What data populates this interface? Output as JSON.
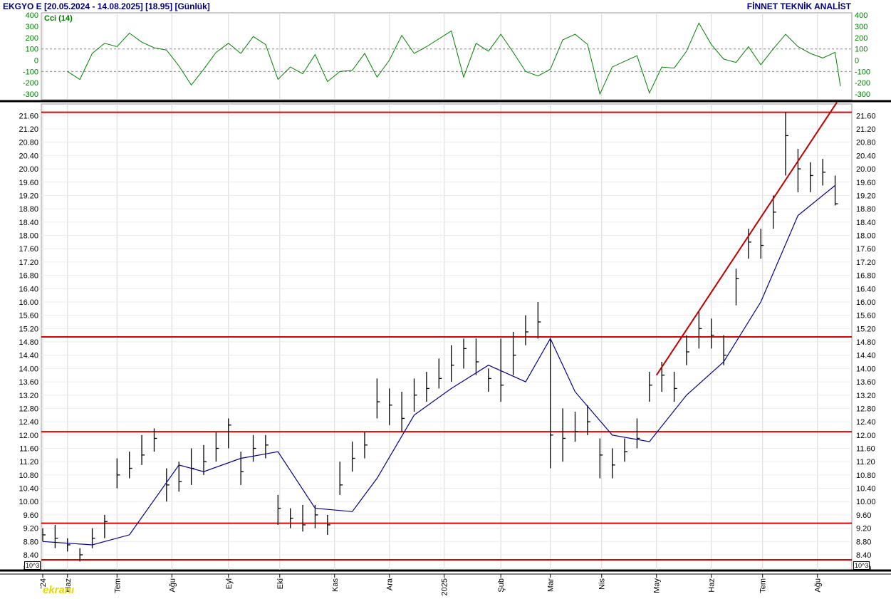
{
  "header": {
    "title": "EKGYO E  [20.05.2024 - 14.08.2025]  [18.95]  [Günlük]",
    "provider": "FİNNET TEKNİK ANALİST"
  },
  "indicator": {
    "label": "Cci (14)"
  },
  "scale_badge": "10^3",
  "watermark": "ekranı",
  "colors": {
    "price_bars": "#000000",
    "moving_average": "#00008b",
    "cci_line": "#008000",
    "support_resistance": "#e00000",
    "axis_text": "#000000",
    "header_text": "#000080"
  },
  "chart_data": [
    {
      "type": "line",
      "panel": "indicator",
      "title": "Cci (14)",
      "ylim": [
        -350,
        420
      ],
      "yticks": [
        400,
        300,
        200,
        100,
        0,
        -100,
        -200,
        -300
      ],
      "yticklabels": [
        "400",
        "300",
        "200",
        "100",
        "0",
        "-100",
        "-200",
        "-300"
      ],
      "reference_lines": [
        100,
        -100
      ],
      "series": [
        {
          "name": "Cci (14)",
          "x": [
            "2024-06-03",
            "2024-06-10",
            "2024-06-17",
            "2024-06-24",
            "2024-07-01",
            "2024-07-08",
            "2024-07-15",
            "2024-07-22",
            "2024-07-29",
            "2024-08-05",
            "2024-08-12",
            "2024-08-19",
            "2024-08-26",
            "2024-09-02",
            "2024-09-09",
            "2024-09-16",
            "2024-09-23",
            "2024-09-30",
            "2024-10-07",
            "2024-10-14",
            "2024-10-21",
            "2024-10-28",
            "2024-11-04",
            "2024-11-11",
            "2024-11-18",
            "2024-11-25",
            "2024-12-02",
            "2024-12-09",
            "2024-12-16",
            "2024-12-23",
            "2025-01-06",
            "2025-01-13",
            "2025-01-20",
            "2025-01-27",
            "2025-02-03",
            "2025-02-10",
            "2025-02-17",
            "2025-02-24",
            "2025-03-03",
            "2025-03-10",
            "2025-03-17",
            "2025-03-24",
            "2025-03-31",
            "2025-04-07",
            "2025-04-14",
            "2025-04-21",
            "2025-04-28",
            "2025-05-05",
            "2025-05-12",
            "2025-05-19",
            "2025-05-26",
            "2025-06-02",
            "2025-06-09",
            "2025-06-16",
            "2025-06-23",
            "2025-06-30",
            "2025-07-07",
            "2025-07-14",
            "2025-07-21",
            "2025-07-28",
            "2025-08-04",
            "2025-08-11",
            "2025-08-14"
          ],
          "values": [
            -100,
            -170,
            60,
            150,
            120,
            240,
            160,
            110,
            90,
            -50,
            -220,
            -80,
            70,
            150,
            60,
            210,
            140,
            -170,
            -60,
            -120,
            50,
            -190,
            -100,
            -90,
            60,
            -150,
            0,
            220,
            60,
            120,
            260,
            -150,
            150,
            80,
            230,
            70,
            -100,
            -140,
            -80,
            180,
            230,
            140,
            -300,
            -60,
            -10,
            40,
            -290,
            -60,
            -70,
            80,
            330,
            140,
            10,
            -20,
            120,
            -40,
            100,
            230,
            120,
            60,
            20,
            70,
            -230
          ]
        }
      ]
    },
    {
      "type": "bar",
      "subtype": "ohlc",
      "panel": "price",
      "title": "EKGYO E",
      "ylim": [
        7.95,
        21.95
      ],
      "yticks": [
        21.6,
        21.2,
        20.8,
        20.4,
        20.0,
        19.6,
        19.2,
        18.8,
        18.4,
        18.0,
        17.6,
        17.2,
        16.8,
        16.4,
        16.0,
        15.6,
        15.2,
        14.8,
        14.4,
        14.0,
        13.6,
        13.2,
        12.8,
        12.4,
        12.0,
        11.6,
        11.2,
        10.8,
        10.4,
        10.0,
        9.6,
        9.2,
        8.8,
        8.4,
        8.0
      ],
      "yticklabels": [
        "21.60",
        "21.20",
        "20.80",
        "20.40",
        "20.00",
        "19.60",
        "19.20",
        "18.80",
        "18.40",
        "18.00",
        "17.60",
        "17.20",
        "16.80",
        "16.40",
        "16.00",
        "15.60",
        "15.20",
        "14.80",
        "14.40",
        "14.00",
        "13.60",
        "13.20",
        "12.80",
        "12.40",
        "12.00",
        "11.60",
        "11.20",
        "10.80",
        "10.40",
        "10.00",
        "9.60",
        "9.20",
        "8.80",
        "8.40",
        "8.00"
      ],
      "xticks": [
        "2024-05-20",
        "2024-06-03",
        "2024-07-01",
        "2024-08-01",
        "2024-09-02",
        "2024-10-01",
        "2024-11-01",
        "2024-12-02",
        "2025-01-02",
        "2025-02-03",
        "2025-03-03",
        "2025-04-01",
        "2025-05-02",
        "2025-06-02",
        "2025-07-01",
        "2025-08-01"
      ],
      "xticklabels": [
        "'24",
        "Haz",
        "Tem",
        "Ağu",
        "Eyl",
        "Eki",
        "Kas",
        "Ara",
        "2025",
        "Şub",
        "Mar",
        "Nis",
        "May",
        "Haz",
        "Tem",
        "Ağu"
      ],
      "date_range": [
        "2024-05-20",
        "2025-08-14"
      ],
      "last_close": 18.95,
      "grid": true,
      "horizontal_levels": [
        21.7,
        14.95,
        12.1,
        9.35,
        8.25
      ],
      "trendline": {
        "from": {
          "x": "2025-05-02",
          "y": 13.8
        },
        "to": {
          "x": "2025-08-12",
          "y": 22.0
        }
      },
      "series": [
        {
          "name": "OHLC",
          "x": [
            "2024-05-20",
            "2024-05-27",
            "2024-06-03",
            "2024-06-10",
            "2024-06-17",
            "2024-06-24",
            "2024-07-01",
            "2024-07-08",
            "2024-07-15",
            "2024-07-22",
            "2024-07-29",
            "2024-08-05",
            "2024-08-12",
            "2024-08-19",
            "2024-08-26",
            "2024-09-02",
            "2024-09-09",
            "2024-09-16",
            "2024-09-23",
            "2024-09-30",
            "2024-10-07",
            "2024-10-14",
            "2024-10-21",
            "2024-10-28",
            "2024-11-04",
            "2024-11-11",
            "2024-11-18",
            "2024-11-25",
            "2024-12-02",
            "2024-12-09",
            "2024-12-16",
            "2024-12-23",
            "2024-12-30",
            "2025-01-06",
            "2025-01-13",
            "2025-01-20",
            "2025-01-27",
            "2025-02-03",
            "2025-02-10",
            "2025-02-17",
            "2025-02-24",
            "2025-03-03",
            "2025-03-10",
            "2025-03-17",
            "2025-03-24",
            "2025-03-31",
            "2025-04-07",
            "2025-04-14",
            "2025-04-21",
            "2025-04-28",
            "2025-05-05",
            "2025-05-12",
            "2025-05-19",
            "2025-05-26",
            "2025-06-02",
            "2025-06-09",
            "2025-06-16",
            "2025-06-23",
            "2025-06-30",
            "2025-07-07",
            "2025-07-14",
            "2025-07-21",
            "2025-07-28",
            "2025-08-04",
            "2025-08-11"
          ],
          "values": [
            9.0,
            8.9,
            8.7,
            8.4,
            8.9,
            9.4,
            10.8,
            11.0,
            11.4,
            11.9,
            10.5,
            10.6,
            11.0,
            11.2,
            11.6,
            12.3,
            10.9,
            11.6,
            11.7,
            9.8,
            9.5,
            9.3,
            9.6,
            9.3,
            10.5,
            11.3,
            11.7,
            13.0,
            12.9,
            12.5,
            13.2,
            13.4,
            13.7,
            14.1,
            14.6,
            14.2,
            13.7,
            13.5,
            14.4,
            15.1,
            15.4,
            12.0,
            11.9,
            12.1,
            12.4,
            11.4,
            11.1,
            11.5,
            11.9,
            13.5,
            13.8,
            13.4,
            14.5,
            15.2,
            15.0,
            14.4,
            16.7,
            17.8,
            17.7,
            18.7,
            21.0,
            20.0,
            19.8,
            19.9,
            18.95
          ],
          "high": [
            9.2,
            9.3,
            8.9,
            8.6,
            9.2,
            9.6,
            11.3,
            11.5,
            12.0,
            12.2,
            11.0,
            11.2,
            11.6,
            11.7,
            12.1,
            12.5,
            11.5,
            12.0,
            12.0,
            10.2,
            9.8,
            9.9,
            9.9,
            9.6,
            11.2,
            11.8,
            12.1,
            13.7,
            13.4,
            13.3,
            13.7,
            13.9,
            14.3,
            14.7,
            14.9,
            14.9,
            14.0,
            14.9,
            15.1,
            15.6,
            16.0,
            14.9,
            12.8,
            12.7,
            12.9,
            11.9,
            11.6,
            11.9,
            12.5,
            13.9,
            14.2,
            13.9,
            15.0,
            15.7,
            15.5,
            15.0,
            17.0,
            18.2,
            18.2,
            19.2,
            21.7,
            20.6,
            20.2,
            20.3,
            19.8
          ],
          "low": [
            8.8,
            8.6,
            8.5,
            8.2,
            8.6,
            8.9,
            10.4,
            10.7,
            11.1,
            11.5,
            10.0,
            10.3,
            10.5,
            10.8,
            11.2,
            11.6,
            10.5,
            11.2,
            11.3,
            9.3,
            9.2,
            9.1,
            9.2,
            9.0,
            10.2,
            10.9,
            11.3,
            12.5,
            12.3,
            12.1,
            12.7,
            13.0,
            13.4,
            13.6,
            14.0,
            13.8,
            13.3,
            13.0,
            13.8,
            14.7,
            14.9,
            11.0,
            11.2,
            11.8,
            12.0,
            10.7,
            10.7,
            11.2,
            11.6,
            13.0,
            13.3,
            13.0,
            14.1,
            14.6,
            14.6,
            14.1,
            15.9,
            17.3,
            17.3,
            18.2,
            19.8,
            19.3,
            19.3,
            19.5,
            18.9
          ]
        },
        {
          "name": "Moving Average",
          "x": [
            "2024-05-20",
            "2024-06-17",
            "2024-07-08",
            "2024-08-05",
            "2024-08-19",
            "2024-09-09",
            "2024-09-30",
            "2024-10-21",
            "2024-11-11",
            "2024-11-25",
            "2024-12-16",
            "2025-01-06",
            "2025-01-27",
            "2025-02-17",
            "2025-03-03",
            "2025-03-17",
            "2025-04-07",
            "2025-04-28",
            "2025-05-19",
            "2025-06-09",
            "2025-06-30",
            "2025-07-21",
            "2025-08-11"
          ],
          "values": [
            8.8,
            8.7,
            9.0,
            11.1,
            10.9,
            11.3,
            11.5,
            9.8,
            9.7,
            10.7,
            12.6,
            13.4,
            14.1,
            13.6,
            14.9,
            13.3,
            12.0,
            11.8,
            13.2,
            14.2,
            16.0,
            18.6,
            19.5
          ]
        }
      ]
    }
  ]
}
